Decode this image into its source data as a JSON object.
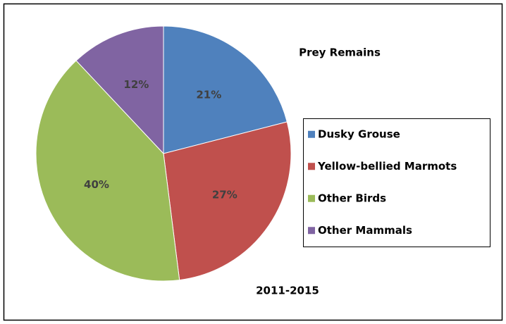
{
  "chart_data": {
    "type": "pie",
    "title": "Prey Remains",
    "subtitle": "2011-2015",
    "categories": [
      "Dusky Grouse",
      "Yellow-bellied Marmots",
      "Other Birds",
      "Other Mammals"
    ],
    "values": [
      21,
      27,
      40,
      12
    ],
    "value_labels": [
      "21%",
      "27%",
      "40%",
      "12%"
    ],
    "colors": [
      "#4f81bd",
      "#c0504d",
      "#9bbb59",
      "#8064a2"
    ],
    "legend": "right"
  }
}
